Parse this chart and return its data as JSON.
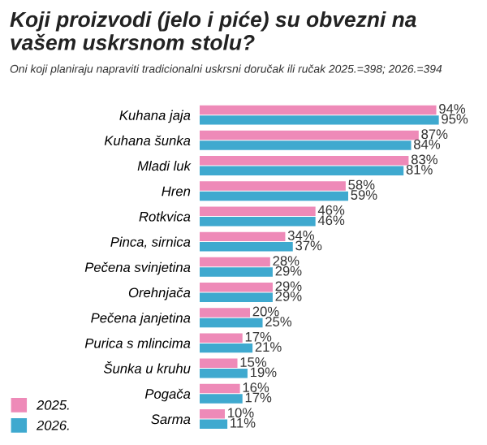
{
  "chart_data": {
    "type": "bar",
    "orientation": "horizontal",
    "title": "Koji proizvodi (jelo i piće) su obvezni na vašem uskrsnom stolu?",
    "subtitle": "Oni koji planiraju napraviti tradicionalni uskrsni doručak ili ručak 2025.=398; 2026.=394",
    "categories": [
      "Kuhana jaja",
      "Kuhana šunka",
      "Mladi luk",
      "Hren",
      "Rotkvica",
      "Pinca, sirnica",
      "Pečena svinjetina",
      "Orehnjača",
      "Pečena janjetina",
      "Purica s mlincima",
      "Šunka u kruhu",
      "Pogača",
      "Sarma"
    ],
    "series": [
      {
        "name": "2025.",
        "color": "#ee8ab8",
        "values": [
          94,
          87,
          83,
          58,
          46,
          34,
          28,
          29,
          20,
          17,
          15,
          16,
          10
        ],
        "value_labels": [
          "94%",
          "87%",
          "83%",
          "58%",
          "46%",
          "34%",
          "28%",
          "29%",
          "20%",
          "17%",
          "15%",
          "16%",
          "10%"
        ]
      },
      {
        "name": "2026.",
        "color": "#3fa9cf",
        "values": [
          95,
          84,
          81,
          59,
          46,
          37,
          29,
          29,
          25,
          21,
          19,
          17,
          11
        ],
        "value_labels": [
          "95%",
          "84%",
          "81%",
          "59%",
          "46%",
          "37%",
          "29%",
          "29%",
          "25%",
          "21%",
          "19%",
          "17%",
          "11%"
        ]
      }
    ],
    "legend": "bottom left",
    "grid": false
  }
}
